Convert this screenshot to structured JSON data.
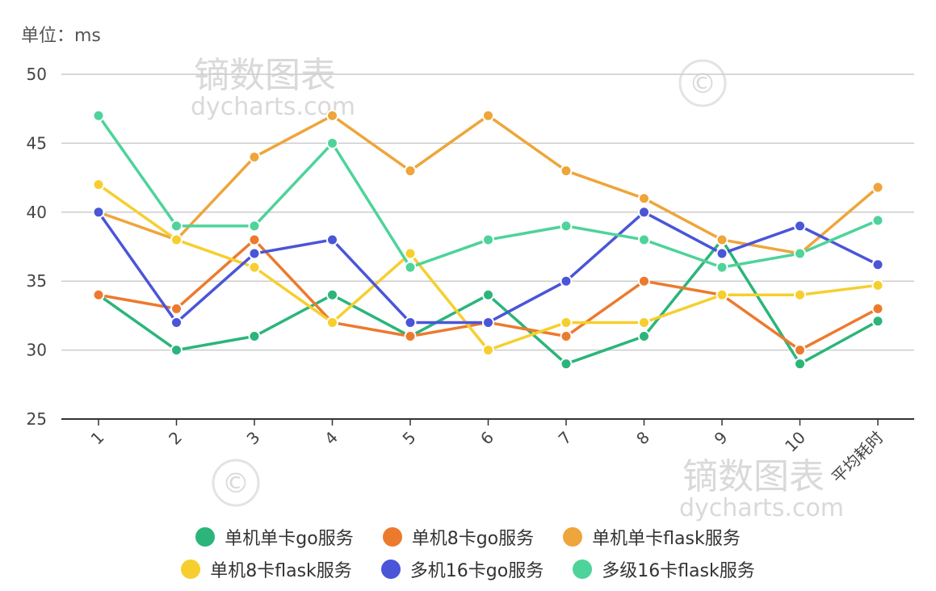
{
  "unit_label": "单位：ms",
  "watermark": {
    "cn": "镝数图表",
    "en": "dycharts.com",
    "symbol": "©"
  },
  "chart_data": {
    "type": "line",
    "title": "",
    "xlabel": "",
    "ylabel": "",
    "categories": [
      "1",
      "2",
      "3",
      "4",
      "5",
      "6",
      "7",
      "8",
      "9",
      "10",
      "平均耗时"
    ],
    "ylim": [
      25,
      50
    ],
    "yticks": [
      25,
      30,
      35,
      40,
      45,
      50
    ],
    "grid": true,
    "legend_placement": "bottom",
    "series": [
      {
        "name": "单机单卡go服务",
        "color": "#2bb57a",
        "values": [
          34,
          30,
          31,
          34,
          31,
          34,
          29,
          31,
          38,
          29,
          32.1
        ]
      },
      {
        "name": "单机8卡go服务",
        "color": "#ec7a2e",
        "values": [
          34,
          33,
          38,
          32,
          31,
          32,
          31,
          35,
          34,
          30,
          33
        ]
      },
      {
        "name": "单机单卡flask服务",
        "color": "#eea53a",
        "values": [
          40,
          38,
          44,
          47,
          43,
          47,
          43,
          41,
          38,
          37,
          41.8
        ]
      },
      {
        "name": "单机8卡flask服务",
        "color": "#f6cf2e",
        "values": [
          42,
          38,
          36,
          32,
          37,
          30,
          32,
          32,
          34,
          34,
          34.7
        ]
      },
      {
        "name": "多机16卡go服务",
        "color": "#4a55d8",
        "values": [
          40,
          32,
          37,
          38,
          32,
          32,
          35,
          40,
          37,
          39,
          36.2
        ]
      },
      {
        "name": "多级16卡flask服务",
        "color": "#4ed39a",
        "values": [
          47,
          39,
          39,
          45,
          36,
          38,
          39,
          38,
          36,
          37,
          39.4
        ]
      }
    ]
  }
}
